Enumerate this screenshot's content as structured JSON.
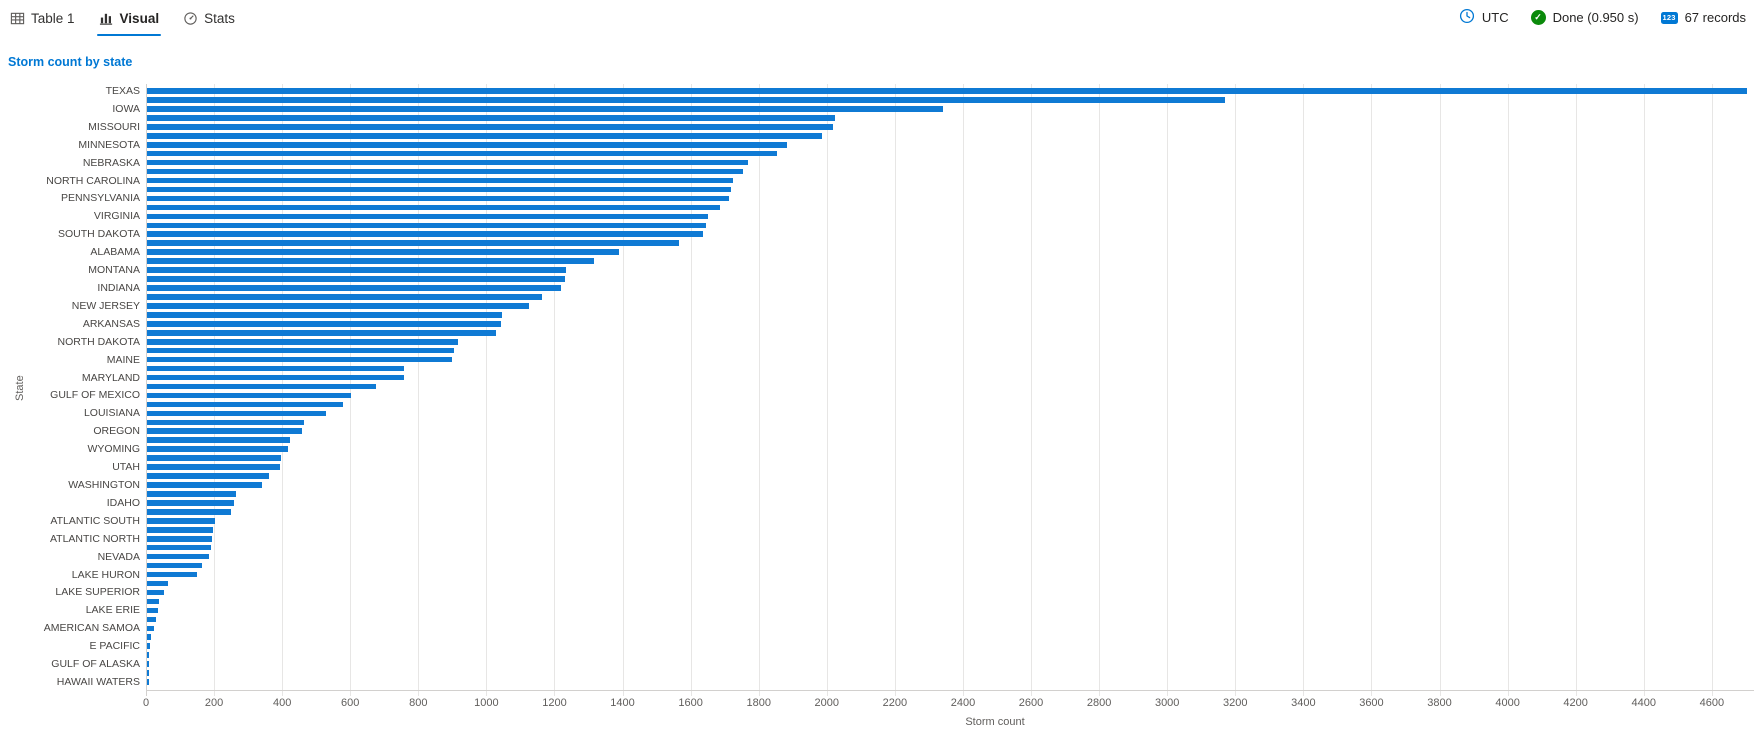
{
  "colors": {
    "accent": "#0078d4",
    "bar": "#0f7ad4",
    "done_green": "#0b8a0b"
  },
  "tabs": [
    {
      "label": "Table 1",
      "icon": "table-icon",
      "active": false
    },
    {
      "label": "Visual",
      "icon": "bar-chart-icon",
      "active": true
    },
    {
      "label": "Stats",
      "icon": "stats-gauge-icon",
      "active": false
    }
  ],
  "status": {
    "timezone": "UTC",
    "done": "Done (0.950 s)",
    "records": "67 records",
    "records_icon_text": "123"
  },
  "chart_data": {
    "type": "bar",
    "orientation": "horizontal",
    "title": "Storm count by state",
    "xlabel": "Storm count",
    "ylabel": "State",
    "xlim": [
      0,
      4700
    ],
    "grid": true,
    "x_ticks": [
      0,
      200,
      400,
      600,
      800,
      1000,
      1200,
      1400,
      1600,
      1800,
      2000,
      2200,
      2400,
      2600,
      2800,
      3000,
      3200,
      3400,
      3600,
      3800,
      4000,
      4200,
      4400,
      4600
    ],
    "note": "67 bars sorted descending; only every other bar has a visible state label",
    "bars": [
      {
        "label": "TEXAS",
        "value": 4701
      },
      {
        "label": "",
        "value": 3166
      },
      {
        "label": "IOWA",
        "value": 2337
      },
      {
        "label": "",
        "value": 2022
      },
      {
        "label": "MISSOURI",
        "value": 2016
      },
      {
        "label": "",
        "value": 1983
      },
      {
        "label": "MINNESOTA",
        "value": 1881
      },
      {
        "label": "",
        "value": 1850
      },
      {
        "label": "NEBRASKA",
        "value": 1766
      },
      {
        "label": "",
        "value": 1750
      },
      {
        "label": "NORTH CAROLINA",
        "value": 1721
      },
      {
        "label": "",
        "value": 1716
      },
      {
        "label": "PENNSYLVANIA",
        "value": 1711
      },
      {
        "label": "",
        "value": 1684
      },
      {
        "label": "VIRGINIA",
        "value": 1649
      },
      {
        "label": "",
        "value": 1642
      },
      {
        "label": "SOUTH DAKOTA",
        "value": 1633
      },
      {
        "label": "",
        "value": 1563
      },
      {
        "label": "ALABAMA",
        "value": 1387
      },
      {
        "label": "",
        "value": 1313
      },
      {
        "label": "MONTANA",
        "value": 1231
      },
      {
        "label": "",
        "value": 1228
      },
      {
        "label": "INDIANA",
        "value": 1216
      },
      {
        "label": "",
        "value": 1160
      },
      {
        "label": "NEW JERSEY",
        "value": 1122
      },
      {
        "label": "",
        "value": 1043
      },
      {
        "label": "ARKANSAS",
        "value": 1040
      },
      {
        "label": "",
        "value": 1025
      },
      {
        "label": "NORTH DAKOTA",
        "value": 913
      },
      {
        "label": "",
        "value": 901
      },
      {
        "label": "MAINE",
        "value": 895
      },
      {
        "label": "",
        "value": 754
      },
      {
        "label": "MARYLAND",
        "value": 754
      },
      {
        "label": "",
        "value": 673
      },
      {
        "label": "GULF OF MEXICO",
        "value": 599
      },
      {
        "label": "",
        "value": 577
      },
      {
        "label": "LOUISIANA",
        "value": 526
      },
      {
        "label": "",
        "value": 461
      },
      {
        "label": "OREGON",
        "value": 455
      },
      {
        "label": "",
        "value": 420
      },
      {
        "label": "WYOMING",
        "value": 414
      },
      {
        "label": "",
        "value": 394
      },
      {
        "label": "UTAH",
        "value": 392
      },
      {
        "label": "",
        "value": 358
      },
      {
        "label": "WASHINGTON",
        "value": 337
      },
      {
        "label": "",
        "value": 261
      },
      {
        "label": "IDAHO",
        "value": 255
      },
      {
        "label": "",
        "value": 247
      },
      {
        "label": "ATLANTIC SOUTH",
        "value": 199
      },
      {
        "label": "",
        "value": 194
      },
      {
        "label": "ATLANTIC NORTH",
        "value": 191
      },
      {
        "label": "",
        "value": 188
      },
      {
        "label": "NEVADA",
        "value": 181
      },
      {
        "label": "",
        "value": 162
      },
      {
        "label": "LAKE HURON",
        "value": 147
      },
      {
        "label": "",
        "value": 61
      },
      {
        "label": "LAKE SUPERIOR",
        "value": 50
      },
      {
        "label": "",
        "value": 35
      },
      {
        "label": "LAKE ERIE",
        "value": 32
      },
      {
        "label": "",
        "value": 26
      },
      {
        "label": "AMERICAN SAMOA",
        "value": 20
      },
      {
        "label": "",
        "value": 12
      },
      {
        "label": "E PACIFIC",
        "value": 9
      },
      {
        "label": "",
        "value": 7
      },
      {
        "label": "GULF OF ALASKA",
        "value": 6
      },
      {
        "label": "",
        "value": 3
      },
      {
        "label": "HAWAII WATERS",
        "value": 2
      }
    ]
  }
}
